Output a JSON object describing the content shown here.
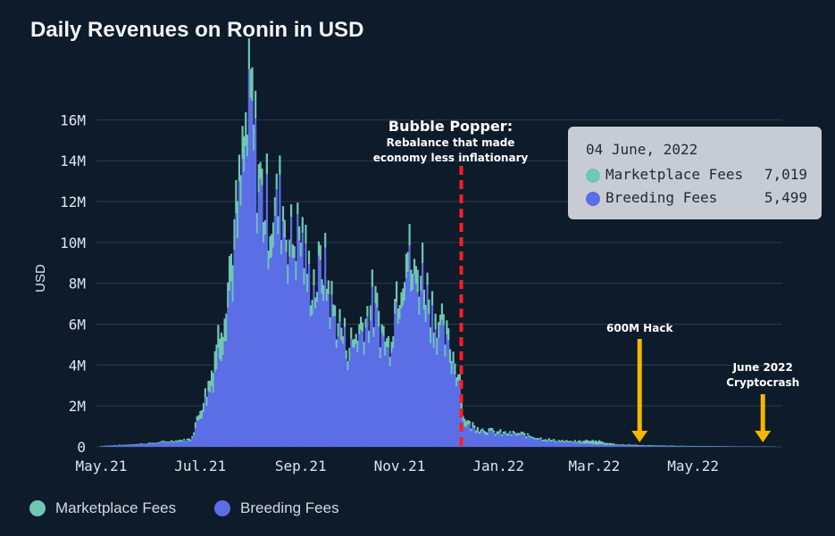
{
  "title": "Daily Revenues on Ronin in USD",
  "colors": {
    "background": "#0d1b2a",
    "marketplace": "#6fc7b4",
    "breeding": "#5b6ee6",
    "grid": "#2a3a4e",
    "event_line": "#ff1f1f",
    "arrow": "#f5b800"
  },
  "chart_data": {
    "type": "bar",
    "stacked": true,
    "ylabel": "USD",
    "xlabel": "",
    "y_ticks": [
      "0",
      "2M",
      "4M",
      "6M",
      "8M",
      "10M",
      "12M",
      "14M",
      "16M"
    ],
    "x_ticks": [
      "May.21",
      "Jul.21",
      "Sep.21",
      "Nov.21",
      "Jan.22",
      "Mar.22",
      "May.22"
    ],
    "ylim": [
      0,
      17500000
    ],
    "xlim": [
      "2021-04-28",
      "2022-06-25"
    ],
    "grid": true,
    "legend_position": "bottom-left",
    "series": [
      {
        "name": "Breeding Fees",
        "x": [
          "2021-05-01",
          "2021-05-15",
          "2021-06-01",
          "2021-06-15",
          "2021-06-25",
          "2021-07-01",
          "2021-07-08",
          "2021-07-15",
          "2021-07-22",
          "2021-07-27",
          "2021-08-01",
          "2021-08-05",
          "2021-08-09",
          "2021-08-14",
          "2021-08-20",
          "2021-08-25",
          "2021-09-01",
          "2021-09-05",
          "2021-09-10",
          "2021-09-15",
          "2021-09-20",
          "2021-09-25",
          "2021-10-01",
          "2021-10-08",
          "2021-10-15",
          "2021-10-20",
          "2021-10-25",
          "2021-10-30",
          "2021-11-05",
          "2021-11-10",
          "2021-11-15",
          "2021-11-20",
          "2021-11-25",
          "2021-12-01",
          "2021-12-05",
          "2021-12-08",
          "2021-12-10",
          "2021-12-15",
          "2021-12-22",
          "2022-01-01",
          "2022-01-15",
          "2022-02-01",
          "2022-02-15",
          "2022-03-01",
          "2022-03-15",
          "2022-04-01",
          "2022-04-15",
          "2022-05-01",
          "2022-05-15",
          "2022-06-01",
          "2022-06-20"
        ],
        "values": [
          40000,
          80000,
          150000,
          250000,
          300000,
          1500000,
          3000000,
          5500000,
          9000000,
          12500000,
          16000000,
          13000000,
          11500000,
          10500000,
          11500000,
          9500000,
          10000000,
          8000000,
          7500000,
          8500000,
          6500000,
          5500000,
          4500000,
          5500000,
          6500000,
          5500000,
          4500000,
          7000000,
          9000000,
          7500000,
          8000000,
          6500000,
          5500000,
          4500000,
          3800000,
          3200000,
          1200000,
          900000,
          750000,
          600000,
          550000,
          280000,
          200000,
          130000,
          80000,
          50000,
          40000,
          30000,
          25000,
          15000,
          12000
        ]
      },
      {
        "name": "Marketplace Fees",
        "x": [
          "2021-05-01",
          "2021-05-15",
          "2021-06-01",
          "2021-06-15",
          "2021-06-25",
          "2021-07-01",
          "2021-07-08",
          "2021-07-15",
          "2021-07-22",
          "2021-07-27",
          "2021-08-01",
          "2021-08-05",
          "2021-08-09",
          "2021-08-14",
          "2021-08-20",
          "2021-08-25",
          "2021-09-01",
          "2021-09-05",
          "2021-09-10",
          "2021-09-15",
          "2021-09-20",
          "2021-09-25",
          "2021-10-01",
          "2021-10-08",
          "2021-10-15",
          "2021-10-20",
          "2021-10-25",
          "2021-10-30",
          "2021-11-05",
          "2021-11-10",
          "2021-11-15",
          "2021-11-20",
          "2021-11-25",
          "2021-12-01",
          "2021-12-05",
          "2021-12-08",
          "2021-12-10",
          "2021-12-15",
          "2021-12-22",
          "2022-01-01",
          "2022-01-15",
          "2022-02-01",
          "2022-02-15",
          "2022-03-01",
          "2022-03-15",
          "2022-04-01",
          "2022-04-15",
          "2022-05-01",
          "2022-05-15",
          "2022-06-01",
          "2022-06-20"
        ],
        "values": [
          10000,
          20000,
          40000,
          60000,
          80000,
          400000,
          800000,
          1200000,
          1500000,
          1300000,
          1500000,
          1100000,
          1000000,
          1000000,
          900000,
          800000,
          800000,
          700000,
          600000,
          700000,
          600000,
          500000,
          500000,
          600000,
          700000,
          600000,
          500000,
          800000,
          1000000,
          900000,
          900000,
          800000,
          700000,
          600000,
          500000,
          400000,
          300000,
          200000,
          150000,
          120000,
          100000,
          80000,
          60000,
          200000,
          40000,
          30000,
          20000,
          15000,
          12000,
          7019,
          8000
        ]
      }
    ],
    "annotations": [
      {
        "id": "bubble",
        "date": "2021-12-09",
        "title": "Bubble Popper:",
        "lines": [
          "Rebalance that made",
          "economy less inflationary"
        ]
      },
      {
        "id": "hack",
        "date": "2022-03-29",
        "lines": [
          "600M Hack"
        ]
      },
      {
        "id": "crash",
        "date": "2022-06-13",
        "lines": [
          "June 2022",
          "Cryptocrash"
        ]
      }
    ]
  },
  "tooltip": {
    "date": "04 June, 2022",
    "rows": [
      {
        "label": "Marketplace Fees",
        "value": "7,019"
      },
      {
        "label": "Breeding Fees",
        "value": "5,499"
      }
    ]
  },
  "legend": [
    {
      "label": "Marketplace Fees"
    },
    {
      "label": "Breeding Fees"
    }
  ]
}
